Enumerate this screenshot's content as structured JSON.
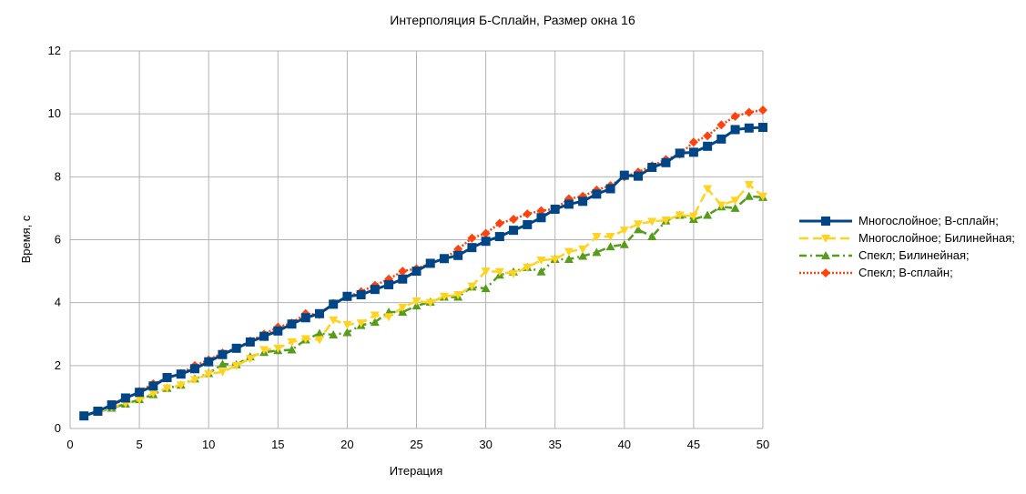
{
  "chart_data": {
    "type": "line",
    "title": "Интерполяция Б-Сплайн, Размер окна 16",
    "xlabel": "Итерация",
    "ylabel": "Время, с",
    "xlim": [
      0,
      50
    ],
    "ylim": [
      0,
      12
    ],
    "xticks": [
      0,
      5,
      10,
      15,
      20,
      25,
      30,
      35,
      40,
      45,
      50
    ],
    "yticks": [
      0,
      2,
      4,
      6,
      8,
      10,
      12
    ],
    "grid": true,
    "legend_position": "right",
    "x": [
      1,
      2,
      3,
      4,
      5,
      6,
      7,
      8,
      9,
      10,
      11,
      12,
      13,
      14,
      15,
      16,
      17,
      18,
      19,
      20,
      21,
      22,
      23,
      24,
      25,
      26,
      27,
      28,
      29,
      30,
      31,
      32,
      33,
      34,
      35,
      36,
      37,
      38,
      39,
      40,
      41,
      42,
      43,
      44,
      45,
      46,
      47,
      48,
      49,
      50
    ],
    "series": [
      {
        "name": "Многослойное; B-сплайн;",
        "color": "#004586",
        "marker": "square",
        "dash": "solid",
        "values": [
          0.4,
          0.55,
          0.75,
          0.97,
          1.15,
          1.35,
          1.62,
          1.73,
          1.9,
          2.12,
          2.35,
          2.55,
          2.75,
          2.93,
          3.1,
          3.32,
          3.52,
          3.65,
          3.95,
          4.2,
          4.25,
          4.42,
          4.57,
          4.75,
          5.0,
          5.25,
          5.4,
          5.5,
          5.75,
          5.95,
          6.1,
          6.3,
          6.48,
          6.7,
          6.97,
          7.13,
          7.22,
          7.45,
          7.62,
          8.05,
          8.02,
          8.3,
          8.45,
          8.75,
          8.78,
          8.97,
          9.2,
          9.5,
          9.55,
          9.57
        ]
      },
      {
        "name": "Многослойное; Билинейная;",
        "color": "#ffd320",
        "marker": "triangle-down",
        "dash": "dash",
        "values": [
          0.4,
          0.52,
          0.68,
          0.8,
          0.92,
          1.12,
          1.28,
          1.38,
          1.55,
          1.73,
          1.8,
          2.0,
          2.22,
          2.5,
          2.55,
          2.75,
          2.85,
          2.82,
          3.45,
          3.3,
          3.35,
          3.6,
          3.55,
          3.85,
          4.05,
          4.0,
          4.2,
          4.25,
          4.52,
          5.0,
          4.98,
          4.92,
          5.12,
          5.35,
          5.38,
          5.62,
          5.7,
          6.1,
          6.1,
          6.3,
          6.5,
          6.58,
          6.62,
          6.78,
          6.75,
          7.62,
          7.1,
          7.25,
          7.75,
          7.38
        ]
      },
      {
        "name": "Спекл; Билинейная;",
        "color": "#579d1c",
        "marker": "triangle-up",
        "dash": "dashdot",
        "values": [
          0.4,
          0.52,
          0.65,
          0.78,
          0.92,
          1.08,
          1.28,
          1.38,
          1.58,
          1.75,
          2.05,
          2.03,
          2.28,
          2.42,
          2.48,
          2.5,
          2.82,
          3.02,
          2.98,
          3.05,
          3.28,
          3.38,
          3.7,
          3.7,
          3.9,
          4.02,
          4.18,
          4.18,
          4.5,
          4.45,
          4.88,
          4.98,
          5.12,
          4.98,
          5.38,
          5.38,
          5.48,
          5.6,
          5.78,
          5.85,
          6.32,
          6.1,
          6.6,
          6.78,
          6.65,
          6.78,
          7.05,
          7.0,
          7.38,
          7.35
        ]
      },
      {
        "name": "Спекл; B-сплайн;",
        "color": "#ff420e",
        "marker": "diamond",
        "dash": "dot",
        "values": [
          0.4,
          0.55,
          0.72,
          0.95,
          1.18,
          1.42,
          1.6,
          1.75,
          2.0,
          2.18,
          2.4,
          2.55,
          2.78,
          3.0,
          3.22,
          3.35,
          3.65,
          3.62,
          3.98,
          4.18,
          4.35,
          4.55,
          4.75,
          5.0,
          5.08,
          5.25,
          5.4,
          5.7,
          6.05,
          6.2,
          6.52,
          6.65,
          6.82,
          6.92,
          6.98,
          7.3,
          7.38,
          7.58,
          7.72,
          8.0,
          8.15,
          8.35,
          8.55,
          8.72,
          9.1,
          9.3,
          9.65,
          9.92,
          10.05,
          10.12
        ]
      }
    ]
  }
}
